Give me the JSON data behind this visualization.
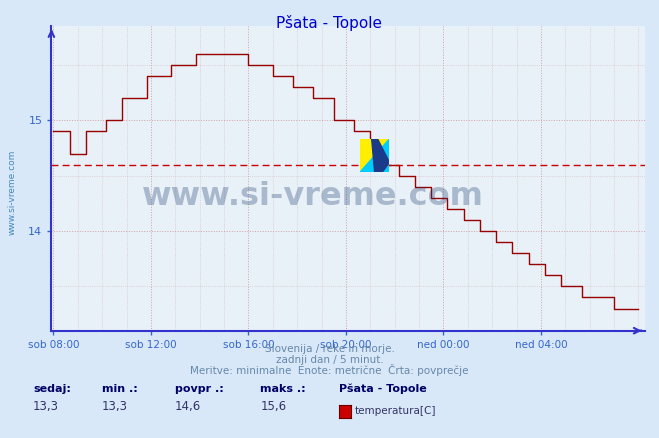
{
  "title": "Pšata - Topole",
  "title_color": "#0000cc",
  "bg_color": "#d8e8f8",
  "plot_bg_color": "#e8f0f8",
  "line_color": "#990000",
  "avg_line_color": "#cc0000",
  "grid_color": "#cc9999",
  "axis_color": "#3333cc",
  "tick_color": "#3366cc",
  "sedaj": "13,3",
  "min_val": "13,3",
  "povpr": "14,6",
  "maks": "15,6",
  "station": "Pšata - Topole",
  "footer1": "Slovenija / reke in morje.",
  "footer2": "zadnji dan / 5 minut.",
  "footer3": "Meritve: minimalne  Enote: metrične  Črta: povprečje",
  "legend_label": "temperatura[C]",
  "legend_color": "#cc0000",
  "x_labels": [
    "sob 08:00",
    "sob 12:00",
    "sob 16:00",
    "sob 20:00",
    "ned 00:00",
    "ned 04:00"
  ],
  "x_positions": [
    0,
    48,
    96,
    144,
    192,
    240
  ],
  "ylim_min": 13.1,
  "ylim_max": 15.85,
  "yticks": [
    14,
    15
  ],
  "avg_value": 14.6,
  "watermark": "www.si-vreme.com",
  "watermark_color": "#1a3a6a",
  "sidebar_text": "www.si-vreme.com",
  "total_points": 289,
  "footer_color": "#6688aa",
  "stats_label_color": "#000066",
  "stats_val_color": "#333366"
}
